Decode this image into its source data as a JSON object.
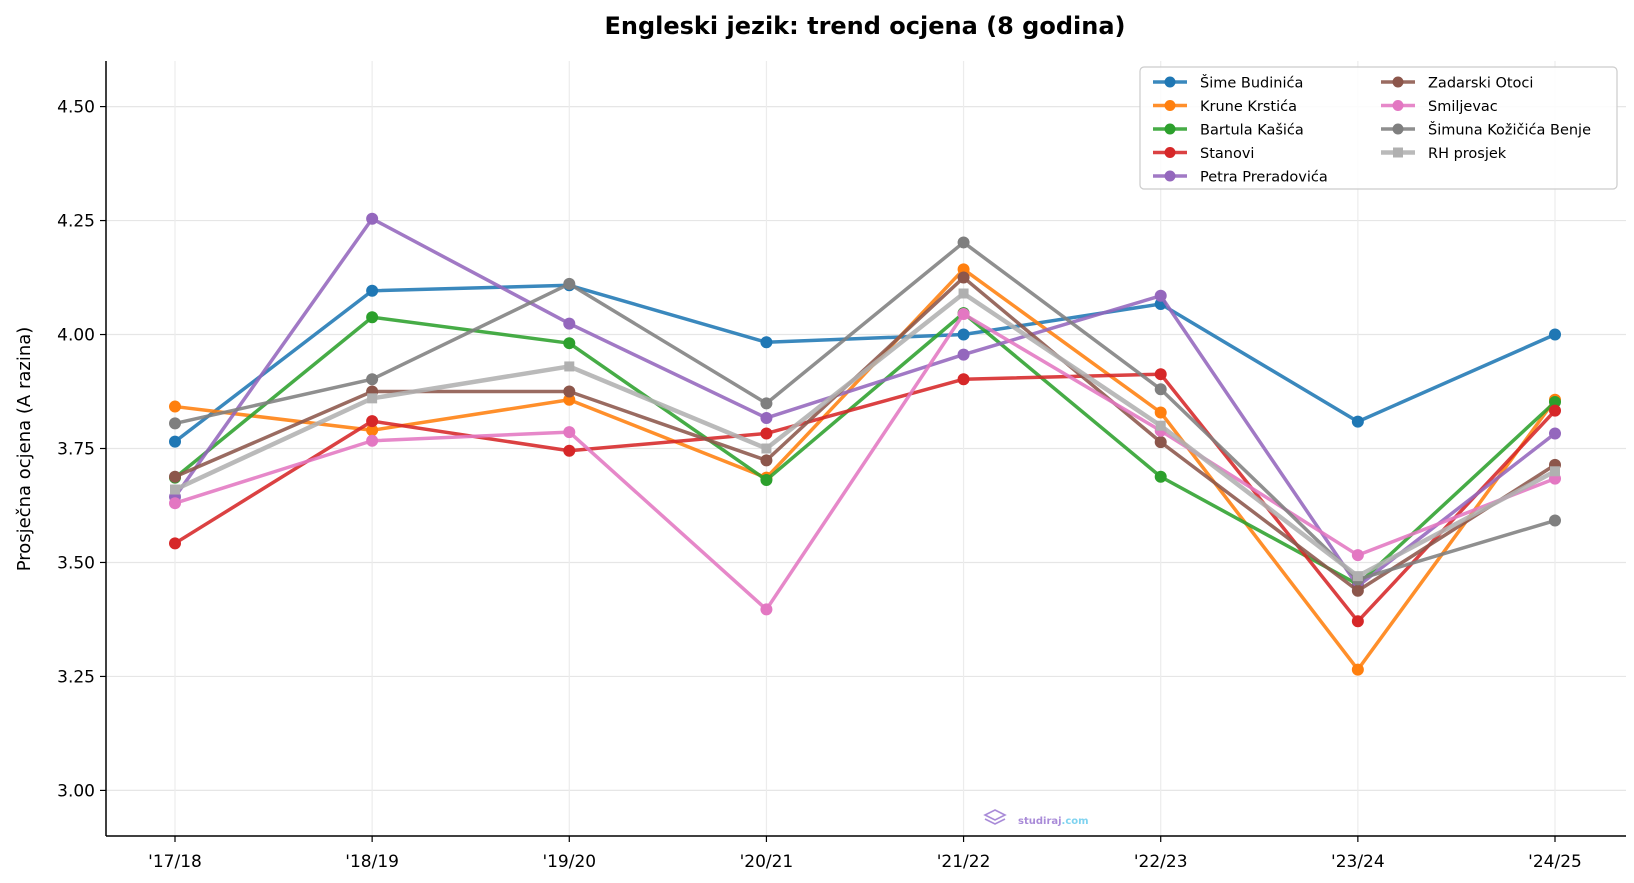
{
  "chart_data": {
    "type": "line",
    "title": "Engleski jezik: trend ocjena (8 godina)",
    "xlabel": "",
    "ylabel": "Prosječna ocjena (A razina)",
    "ylim": [
      2.9,
      4.6
    ],
    "yticks": [
      3.0,
      3.25,
      3.5,
      3.75,
      4.0,
      4.25,
      4.5
    ],
    "ytick_labels": [
      "3.00",
      "3.25",
      "3.50",
      "3.75",
      "4.00",
      "4.25",
      "4.50"
    ],
    "categories": [
      "'17/18",
      "'18/19",
      "'19/20",
      "'20/21",
      "'21/22",
      "'22/23",
      "'23/24",
      "'24/25"
    ],
    "grid": true,
    "legend_position": "top-right",
    "series": [
      {
        "name": "Šime Budinića",
        "color": "#1f77b4",
        "marker": "circle",
        "values": [
          3.765,
          4.096,
          4.108,
          3.983,
          4.0,
          4.067,
          3.809,
          4.0
        ]
      },
      {
        "name": "Krune Krstića",
        "color": "#ff7f0e",
        "marker": "circle",
        "values": [
          3.842,
          3.79,
          3.857,
          3.686,
          4.143,
          3.829,
          3.265,
          3.857
        ]
      },
      {
        "name": "Bartula Kašića",
        "color": "#2ca02c",
        "marker": "circle",
        "values": [
          3.686,
          4.038,
          3.981,
          3.681,
          4.047,
          3.688,
          3.452,
          3.852
        ]
      },
      {
        "name": "Stanovi",
        "color": "#d62728",
        "marker": "circle",
        "values": [
          3.542,
          3.81,
          3.745,
          3.783,
          3.902,
          3.913,
          3.371,
          3.833
        ]
      },
      {
        "name": "Petra Preradovića",
        "color": "#9467bd",
        "marker": "circle",
        "values": [
          3.644,
          4.254,
          4.024,
          3.817,
          3.956,
          4.085,
          3.448,
          3.783
        ]
      },
      {
        "name": "Zadarski Otoci",
        "color": "#8c564b",
        "marker": "circle",
        "values": [
          3.688,
          3.875,
          3.875,
          3.724,
          4.125,
          3.764,
          3.438,
          3.714
        ]
      },
      {
        "name": "Smiljevac",
        "color": "#e377c2",
        "marker": "circle",
        "values": [
          3.63,
          3.767,
          3.786,
          3.397,
          4.045,
          3.789,
          3.516,
          3.684
        ]
      },
      {
        "name": "Šimuna Kožičića Benje",
        "color": "#7f7f7f",
        "marker": "circle",
        "values": [
          3.805,
          3.902,
          4.111,
          3.849,
          4.202,
          3.88,
          3.463,
          3.592
        ]
      },
      {
        "name": "RH prosjek",
        "color": "#b0b0b0",
        "marker": "square",
        "values": [
          3.66,
          3.86,
          3.93,
          3.75,
          4.09,
          3.8,
          3.47,
          3.7
        ]
      }
    ]
  },
  "watermark": {
    "brand": "studiraj",
    "domain": ".com"
  }
}
